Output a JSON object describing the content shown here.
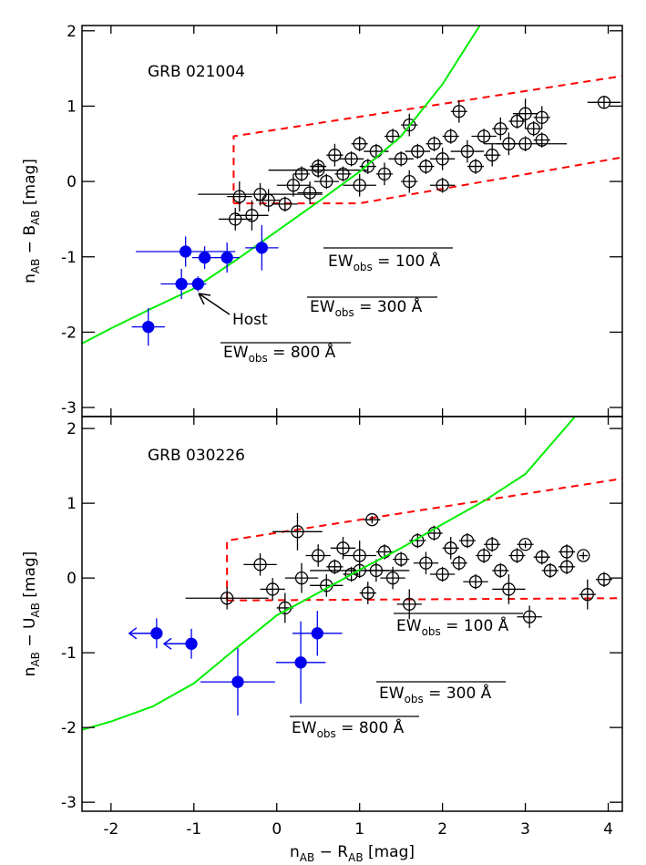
{
  "chart_data": [
    {
      "type": "scatter",
      "title": "GRB 021004",
      "ylabel": [
        "n",
        "AB",
        " − B",
        "AB",
        " [mag]"
      ],
      "xlim": [
        -2.35,
        4.17
      ],
      "ylim": [
        -3.12,
        2.07
      ],
      "xticks": [
        -2,
        -1,
        0,
        1,
        2,
        3,
        4
      ],
      "yticks": [
        -3,
        -2,
        -1,
        0,
        1,
        2
      ],
      "annotations": [
        "Host"
      ],
      "ew_labels": [
        [
          "EW",
          "obs",
          " = 100 Å"
        ],
        [
          "EW",
          "obs",
          " = 300 Å"
        ],
        [
          "EW",
          "obs",
          " = 800 Å"
        ]
      ],
      "series": [
        {
          "type": "line",
          "color": "#ff0000",
          "dashed": true,
          "x": [
            -0.52,
            -0.52,
            4.17
          ],
          "values": [
            -0.29,
            0.6,
            1.4
          ]
        },
        {
          "type": "line",
          "color": "#ff0000",
          "dashed": true,
          "x": [
            -0.52,
            1.0,
            4.17
          ],
          "values": [
            -0.29,
            -0.29,
            0.32
          ]
        },
        {
          "type": "scatter",
          "color": "#000000",
          "filled": false,
          "x": [
            -0.2,
            -0.5,
            -0.45,
            -0.3,
            -0.1,
            0.1,
            0.2,
            0.3,
            0.4,
            0.5,
            0.6,
            0.7,
            0.8,
            0.9,
            1.0,
            1.0,
            1.1,
            1.2,
            1.3,
            1.4,
            1.5,
            1.6,
            1.6,
            1.7,
            1.8,
            1.9,
            2.0,
            2.1,
            2.2,
            2.3,
            2.4,
            2.5,
            2.6,
            2.7,
            2.8,
            2.9,
            3.0,
            3.1,
            3.2,
            3.2,
            3.95,
            3.0,
            2.0,
            0.5
          ],
          "values": [
            -0.17,
            -0.5,
            -0.2,
            -0.45,
            -0.25,
            -0.3,
            -0.05,
            0.1,
            -0.15,
            0.2,
            0.0,
            0.35,
            0.1,
            0.3,
            -0.05,
            0.5,
            0.2,
            0.4,
            0.1,
            0.6,
            0.3,
            0.0,
            0.75,
            0.4,
            0.2,
            0.5,
            0.3,
            0.6,
            0.93,
            0.4,
            0.2,
            0.6,
            0.35,
            0.7,
            0.5,
            0.8,
            0.9,
            0.7,
            0.85,
            0.55,
            1.05,
            0.5,
            -0.05,
            0.15
          ],
          "xerr": [
            0.75,
            0.2,
            0.15,
            0.2,
            0.15,
            0.15,
            0.2,
            0.1,
            0.15,
            0.1,
            0.15,
            0.1,
            0.1,
            0.15,
            0.2,
            0.1,
            0.1,
            0.15,
            0.1,
            0.1,
            0.15,
            0.1,
            0.1,
            0.15,
            0.1,
            0.1,
            0.15,
            0.1,
            0.1,
            0.2,
            0.1,
            0.15,
            0.1,
            0.1,
            0.15,
            0.1,
            0.15,
            0.1,
            0.1,
            0.1,
            0.2,
            0.5,
            0.15,
            0.6
          ],
          "yerr": [
            0.15,
            0.15,
            0.2,
            0.2,
            0.15,
            0.1,
            0.15,
            0.1,
            0.15,
            0.1,
            0.1,
            0.15,
            0.1,
            0.1,
            0.15,
            0.1,
            0.1,
            0.1,
            0.15,
            0.1,
            0.1,
            0.15,
            0.15,
            0.1,
            0.1,
            0.1,
            0.15,
            0.1,
            0.15,
            0.15,
            0.1,
            0.1,
            0.15,
            0.15,
            0.15,
            0.1,
            0.2,
            0.1,
            0.15,
            0.1,
            0.08,
            0.1,
            0.1,
            0.1
          ]
        },
        {
          "type": "line",
          "color": "#00ee00",
          "dashed": false,
          "x": [
            -2.35,
            -2,
            -1.5,
            -1,
            -0.5,
            0,
            0.5,
            1,
            1.5,
            2,
            2.45
          ],
          "values": [
            -2.15,
            -1.95,
            -1.68,
            -1.42,
            -1.05,
            -0.66,
            -0.27,
            0.13,
            0.6,
            1.29,
            2.07
          ]
        },
        {
          "type": "scatter",
          "color": "#0000ee",
          "filled": true,
          "x": [
            -1.55,
            -1.1,
            -1.15,
            -0.95,
            -0.87,
            -0.6,
            -0.18
          ],
          "values": [
            -1.93,
            -0.93,
            -1.36,
            -1.36,
            -1.01,
            -1.01,
            -0.88
          ],
          "xerr": [
            0.2,
            0.6,
            0.25,
            0.1,
            0.15,
            0.15,
            0.2
          ],
          "yerr": [
            0.25,
            0.2,
            0.2,
            0.1,
            0.15,
            0.2,
            0.3
          ]
        }
      ]
    },
    {
      "type": "scatter",
      "title": "GRB 030226",
      "ylabel": [
        "n",
        "AB",
        " − U",
        "AB",
        " [mag]"
      ],
      "xlabel": [
        "n",
        "AB",
        " − R",
        "AB",
        " [mag]"
      ],
      "xlim": [
        -2.35,
        4.17
      ],
      "ylim": [
        -3.12,
        2.16
      ],
      "xticks": [
        -2,
        -1,
        0,
        1,
        2,
        3,
        4
      ],
      "yticks": [
        -3,
        -2,
        -1,
        0,
        1,
        2
      ],
      "ew_labels": [
        [
          "EW",
          "obs",
          " = 100 Å"
        ],
        [
          "EW",
          "obs",
          " = 300 Å"
        ],
        [
          "EW",
          "obs",
          " = 800 Å"
        ]
      ],
      "series": [
        {
          "type": "line",
          "color": "#ff0000",
          "dashed": true,
          "x": [
            -0.6,
            -0.6,
            4.17
          ],
          "values": [
            -0.3,
            0.5,
            1.33
          ]
        },
        {
          "type": "line",
          "color": "#ff0000",
          "dashed": true,
          "x": [
            -0.6,
            4.17
          ],
          "values": [
            -0.3,
            -0.27
          ]
        },
        {
          "type": "scatter",
          "color": "#000000",
          "filled": false,
          "x": [
            -0.6,
            -0.2,
            0.25,
            -0.05,
            0.1,
            0.3,
            0.5,
            0.6,
            0.7,
            0.8,
            0.9,
            1.0,
            1.1,
            1.15,
            1.2,
            1.3,
            1.4,
            1.5,
            1.6,
            1.7,
            1.8,
            1.9,
            2.0,
            2.1,
            2.2,
            2.3,
            2.4,
            2.5,
            2.6,
            2.7,
            2.8,
            2.9,
            3.0,
            3.05,
            3.2,
            3.3,
            3.5,
            3.5,
            3.75,
            3.95,
            3.7,
            1.0
          ],
          "values": [
            -0.27,
            0.18,
            0.62,
            -0.15,
            -0.4,
            0.0,
            0.3,
            -0.1,
            0.15,
            0.4,
            0.05,
            0.3,
            -0.2,
            0.78,
            0.1,
            0.35,
            0.0,
            0.25,
            -0.35,
            0.5,
            0.2,
            0.6,
            0.05,
            0.4,
            0.2,
            0.5,
            -0.05,
            0.3,
            0.45,
            0.1,
            -0.15,
            0.3,
            0.45,
            -0.52,
            0.28,
            0.1,
            0.35,
            0.15,
            -0.22,
            -0.02,
            0.3,
            0.1
          ],
          "xerr": [
            0.5,
            0.2,
            0.3,
            0.15,
            0.1,
            0.2,
            0.15,
            0.2,
            0.1,
            0.15,
            0.1,
            0.2,
            0.1,
            0.1,
            0.15,
            0.1,
            0.15,
            0.1,
            0.15,
            0.1,
            0.15,
            0.1,
            0.15,
            0.1,
            0.1,
            0.1,
            0.15,
            0.1,
            0.1,
            0.1,
            0.2,
            0.1,
            0.1,
            0.15,
            0.1,
            0.1,
            0.1,
            0.1,
            0.1,
            0.1,
            0.05,
            0.6
          ],
          "yerr": [
            0.15,
            0.15,
            0.25,
            0.15,
            0.2,
            0.2,
            0.15,
            0.15,
            0.1,
            0.15,
            0.1,
            0.2,
            0.15,
            0.05,
            0.15,
            0.1,
            0.15,
            0.1,
            0.2,
            0.1,
            0.15,
            0.1,
            0.1,
            0.15,
            0.1,
            0.1,
            0.1,
            0.1,
            0.1,
            0.1,
            0.2,
            0.1,
            0.05,
            0.15,
            0.1,
            0.1,
            0.1,
            0.1,
            0.2,
            0.1,
            0.05,
            0.1
          ]
        },
        {
          "type": "line",
          "color": "#00ee00",
          "dashed": false,
          "x": [
            -2.35,
            -2,
            -1.5,
            -1,
            -0.5,
            0,
            0.5,
            1,
            1.5,
            2,
            2.5,
            3,
            3.6
          ],
          "values": [
            -2.03,
            -1.92,
            -1.72,
            -1.41,
            -0.95,
            -0.5,
            -0.2,
            0.11,
            0.4,
            0.72,
            1.03,
            1.39,
            2.16
          ]
        },
        {
          "type": "scatter",
          "color": "#0000ee",
          "filled": true,
          "x": [
            -1.45,
            -1.03,
            -0.47,
            0.29,
            0.49
          ],
          "values": [
            -0.74,
            -0.88,
            -1.39,
            -1.13,
            -0.74
          ],
          "xerr": [
            0,
            0,
            0.45,
            0.3,
            0.3
          ],
          "yerr": [
            0.2,
            0.2,
            0.45,
            0.55,
            0.3
          ],
          "x_upper_limit": [
            true,
            true,
            false,
            false,
            false
          ]
        }
      ]
    }
  ]
}
